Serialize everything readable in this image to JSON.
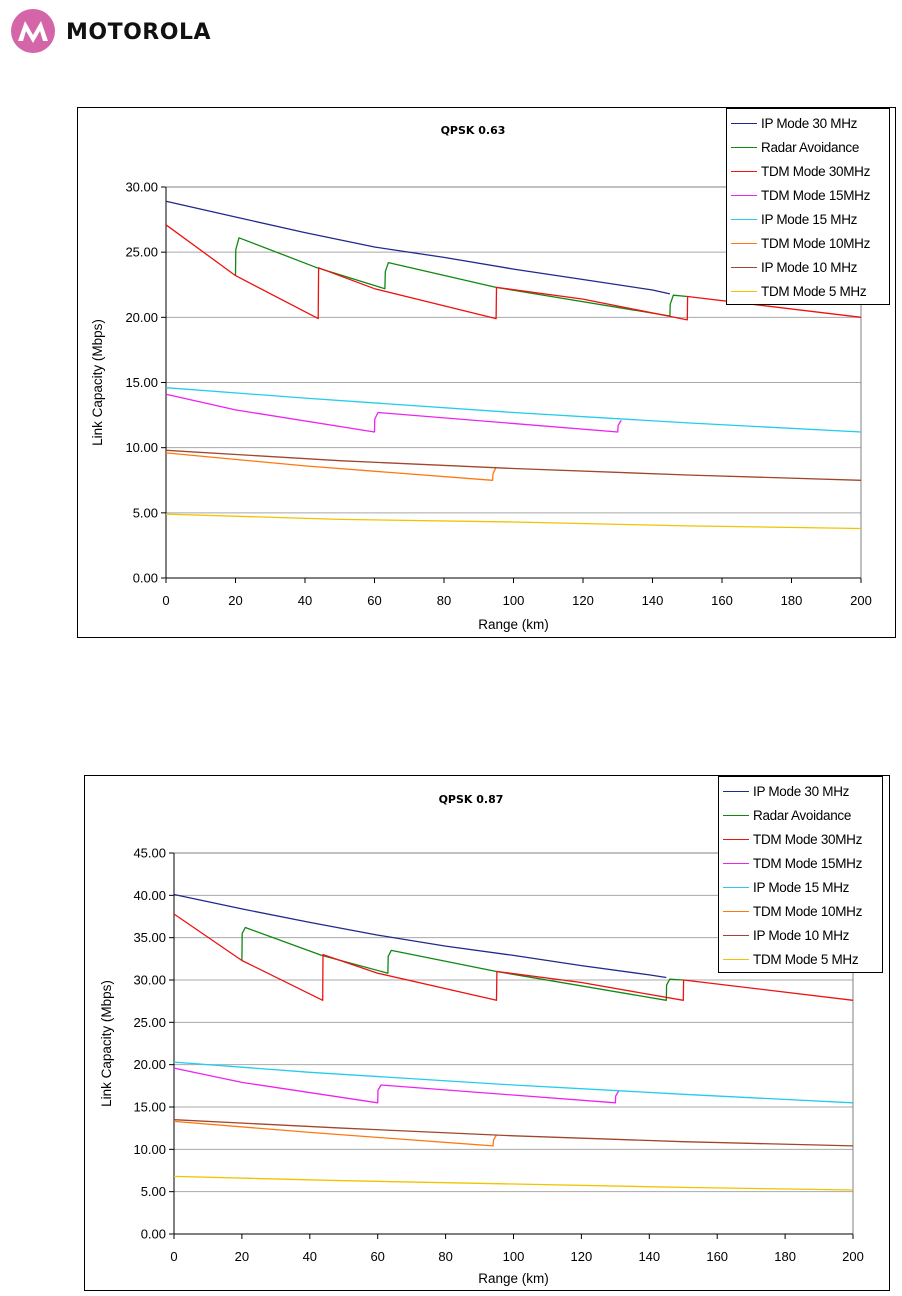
{
  "brand": {
    "name": "MOTOROLA",
    "logo_icon": "motorola-batwing-logo",
    "logo_color": "#d365a8"
  },
  "chart_data": [
    {
      "type": "line",
      "title": "QPSK 0.63",
      "xlabel": "Range (km)",
      "ylabel": "Link Capacity (Mbps)",
      "xlim": [
        0,
        200
      ],
      "ylim": [
        0,
        30
      ],
      "xticks": [
        "0",
        "20",
        "40",
        "60",
        "80",
        "100",
        "120",
        "140",
        "160",
        "180",
        "200"
      ],
      "yticks": [
        "0.00",
        "5.00",
        "10.00",
        "15.00",
        "20.00",
        "25.00",
        "30.00"
      ],
      "grid": "horizontal",
      "legend": "top-right",
      "series": [
        {
          "name": "IP Mode 30 MHz",
          "color": "#1f2a8c",
          "x": [
            0,
            20,
            40,
            60,
            80,
            100,
            120,
            140,
            145
          ],
          "y": [
            28.9,
            27.7,
            26.5,
            25.4,
            24.6,
            23.7,
            22.9,
            22.1,
            21.8
          ]
        },
        {
          "name": "Radar Avoidance",
          "color": "#118811",
          "x": [
            20,
            20.1,
            21,
            43.5,
            63,
            63.1,
            64,
            95,
            145,
            145.1,
            146,
            150
          ],
          "y": [
            23.2,
            25.2,
            26.1,
            23.8,
            22.2,
            23.5,
            24.2,
            22.3,
            20.1,
            21.0,
            21.7,
            21.6
          ]
        },
        {
          "name": "TDM Mode 30MHz",
          "color": "#ee1111",
          "x": [
            0,
            20,
            43.8,
            43.9,
            60,
            95,
            95.1,
            120,
            150,
            150.1,
            200
          ],
          "y": [
            27.1,
            23.2,
            19.9,
            23.8,
            22.2,
            19.9,
            22.3,
            21.4,
            19.8,
            21.6,
            20.0
          ]
        },
        {
          "name": "TDM Mode 15MHz",
          "color": "#ee22ee",
          "x": [
            0,
            20,
            60,
            60.1,
            61,
            130,
            130.1,
            131
          ],
          "y": [
            14.1,
            12.9,
            11.2,
            12.2,
            12.7,
            11.2,
            11.7,
            12.1
          ]
        },
        {
          "name": "IP Mode 15 MHz",
          "color": "#22ccee",
          "x": [
            0,
            40,
            100,
            150,
            200
          ],
          "y": [
            14.6,
            13.8,
            12.7,
            11.9,
            11.2
          ]
        },
        {
          "name": "TDM Mode 10MHz",
          "color": "#ff7711",
          "x": [
            0,
            40,
            94,
            94.1,
            95
          ],
          "y": [
            9.6,
            8.6,
            7.5,
            8.0,
            8.5
          ]
        },
        {
          "name": "IP Mode 10 MHz",
          "color": "#a0462a",
          "x": [
            0,
            50,
            100,
            150,
            200
          ],
          "y": [
            9.8,
            9.0,
            8.4,
            7.9,
            7.5
          ]
        },
        {
          "name": "TDM Mode 5 MHz",
          "color": "#f0c400",
          "x": [
            0,
            50,
            100,
            150,
            200
          ],
          "y": [
            4.9,
            4.5,
            4.3,
            4.0,
            3.8
          ]
        }
      ]
    },
    {
      "type": "line",
      "title": "QPSK 0.87",
      "xlabel": "Range (km)",
      "ylabel": "Link Capacity (Mbps)",
      "xlim": [
        0,
        200
      ],
      "ylim": [
        0,
        45
      ],
      "xticks": [
        "0",
        "20",
        "40",
        "60",
        "80",
        "100",
        "120",
        "140",
        "160",
        "180",
        "200"
      ],
      "yticks": [
        "0.00",
        "5.00",
        "10.00",
        "15.00",
        "20.00",
        "25.00",
        "30.00",
        "35.00",
        "40.00",
        "45.00"
      ],
      "grid": "horizontal",
      "legend": "top-right",
      "series": [
        {
          "name": "IP Mode 30 MHz",
          "color": "#1f2a8c",
          "x": [
            0,
            20,
            40,
            60,
            80,
            100,
            120,
            140,
            145
          ],
          "y": [
            40.1,
            38.4,
            36.8,
            35.3,
            34.0,
            32.9,
            31.7,
            30.6,
            30.3
          ]
        },
        {
          "name": "Radar Avoidance",
          "color": "#118811",
          "x": [
            20,
            20.1,
            21,
            43.5,
            63,
            63.1,
            64,
            95,
            145,
            145.1,
            146,
            150
          ],
          "y": [
            32.3,
            35.5,
            36.2,
            32.9,
            30.8,
            32.8,
            33.5,
            31.0,
            27.6,
            29.4,
            30.1,
            30.0
          ]
        },
        {
          "name": "TDM Mode 30MHz",
          "color": "#ee1111",
          "x": [
            0,
            20,
            43.8,
            43.9,
            60,
            95,
            95.1,
            120,
            150,
            150.1,
            200
          ],
          "y": [
            37.8,
            32.3,
            27.6,
            33.0,
            30.8,
            27.6,
            31.0,
            29.7,
            27.6,
            30.0,
            27.6
          ]
        },
        {
          "name": "TDM Mode 15MHz",
          "color": "#ee22ee",
          "x": [
            0,
            20,
            60,
            60.1,
            61,
            130,
            130.1,
            131
          ],
          "y": [
            19.6,
            17.9,
            15.5,
            17.0,
            17.6,
            15.5,
            16.3,
            16.9
          ]
        },
        {
          "name": "IP Mode 15 MHz",
          "color": "#22ccee",
          "x": [
            0,
            40,
            100,
            150,
            200
          ],
          "y": [
            20.3,
            19.1,
            17.6,
            16.5,
            15.5
          ]
        },
        {
          "name": "TDM Mode 10MHz",
          "color": "#ff7711",
          "x": [
            0,
            40,
            94,
            94.1,
            95
          ],
          "y": [
            13.3,
            12.0,
            10.4,
            11.1,
            11.7
          ]
        },
        {
          "name": "IP Mode 10 MHz",
          "color": "#a0462a",
          "x": [
            0,
            50,
            100,
            150,
            200
          ],
          "y": [
            13.5,
            12.5,
            11.6,
            10.9,
            10.4
          ]
        },
        {
          "name": "TDM Mode 5 MHz",
          "color": "#f0c400",
          "x": [
            0,
            50,
            100,
            150,
            200
          ],
          "y": [
            6.8,
            6.3,
            5.9,
            5.5,
            5.2
          ]
        }
      ]
    }
  ]
}
